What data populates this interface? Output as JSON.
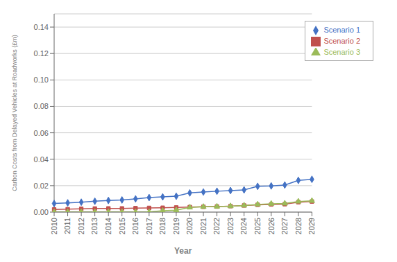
{
  "chart_data": {
    "type": "line",
    "xlabel": "Year",
    "ylabel": "Carbon Costs from Delayed Vehicles at Roadworks (£m)",
    "categories": [
      "2010",
      "2011",
      "2012",
      "2013",
      "2014",
      "2015",
      "2016",
      "2017",
      "2018",
      "2019",
      "2020",
      "2021",
      "2022",
      "2023",
      "2024",
      "2025",
      "2026",
      "2027",
      "2028",
      "2029"
    ],
    "series": [
      {
        "name": "Scenario 1",
        "color": "#4472C4",
        "marker": "diamond",
        "values": [
          0.0065,
          0.007,
          0.0075,
          0.0082,
          0.0088,
          0.0092,
          0.01,
          0.011,
          0.0115,
          0.012,
          0.0145,
          0.0152,
          0.0158,
          0.0163,
          0.0168,
          0.0195,
          0.0198,
          0.0205,
          0.024,
          0.0248
        ]
      },
      {
        "name": "Scenario 2",
        "color": "#C0504D",
        "marker": "square",
        "values": [
          0.002,
          0.0022,
          0.0025,
          0.0027,
          0.0028,
          0.0028,
          0.003,
          0.0032,
          0.0033,
          0.0035,
          0.0038,
          0.004,
          0.0042,
          0.0045,
          0.005,
          0.0055,
          0.0058,
          0.006,
          0.0075,
          0.008
        ]
      },
      {
        "name": "Scenario 3",
        "color": "#9BBB59",
        "marker": "triangle",
        "values": [
          0.0001,
          0.0001,
          0.0001,
          0.0001,
          0.0001,
          0.0001,
          0.0001,
          0.0001,
          0.001,
          0.0015,
          0.0035,
          0.004,
          0.0042,
          0.0045,
          0.005,
          0.0058,
          0.0063,
          0.0065,
          0.008,
          0.0085
        ]
      }
    ],
    "ylim": [
      0,
      0.15
    ],
    "yticks": [
      {
        "value": 0,
        "label": "0.00"
      },
      0.02,
      0.04,
      0.06,
      0.08,
      {
        "value": 0.1,
        "label": "0.10"
      },
      0.12,
      0.14
    ],
    "grid": "y",
    "legend": "upper right"
  }
}
